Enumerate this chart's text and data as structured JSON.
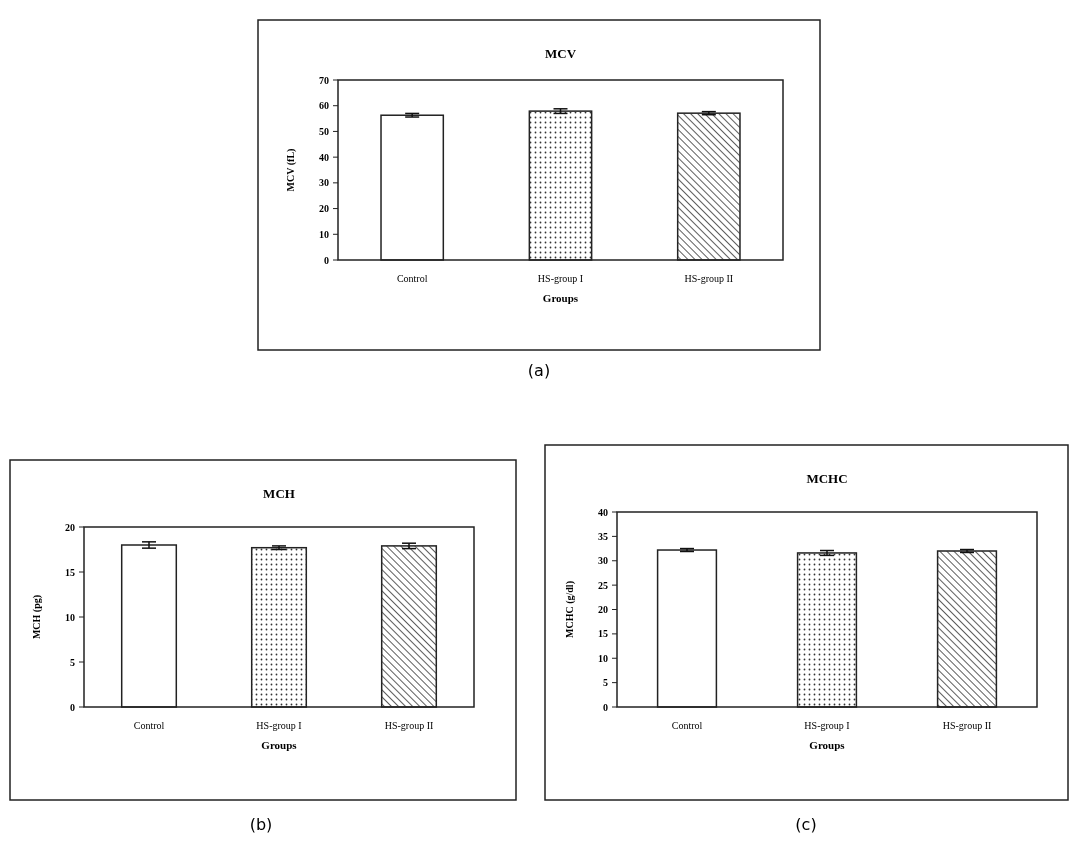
{
  "chart_data": [
    {
      "type": "bar",
      "title": "MCV",
      "xlabel": "Groups",
      "ylabel": "MCV (fL)",
      "categories": [
        "Control",
        "HS-group I",
        "HS-group II"
      ],
      "values": [
        56.3,
        57.9,
        57.1
      ],
      "errors": [
        0.7,
        0.9,
        0.6
      ],
      "colors": [
        "#ffffff",
        "#ffffff",
        "#ffffff"
      ],
      "ylim": [
        0,
        70
      ],
      "yticks": [
        0,
        10,
        20,
        30,
        40,
        50,
        60,
        70
      ],
      "grid": false,
      "annotations": [
        "(a)"
      ]
    },
    {
      "type": "bar",
      "title": "MCH",
      "xlabel": "Groups",
      "ylabel": "MCH (pg)",
      "categories": [
        "Control",
        "HS-group I",
        "HS-group II"
      ],
      "values": [
        18.0,
        17.7,
        17.9
      ],
      "errors": [
        0.35,
        0.2,
        0.3
      ],
      "colors": [
        "#ffffff",
        "#ffffff",
        "#ffffff"
      ],
      "ylim": [
        0,
        20
      ],
      "yticks": [
        0,
        5,
        10,
        15,
        20
      ],
      "grid": false,
      "annotations": [
        "(b)"
      ]
    },
    {
      "type": "bar",
      "title": "MCHC",
      "xlabel": "Groups",
      "ylabel": "MCHC (g/dl)",
      "categories": [
        "Control",
        "HS-group I",
        "HS-group II"
      ],
      "values": [
        32.2,
        31.6,
        32.0
      ],
      "errors": [
        0.3,
        0.5,
        0.3
      ],
      "colors": [
        "#ffffff",
        "#ffffff",
        "#ffffff"
      ],
      "ylim": [
        0,
        40
      ],
      "yticks": [
        0,
        5,
        10,
        15,
        20,
        25,
        30,
        35,
        40
      ],
      "grid": false,
      "annotations": [
        "(c)"
      ]
    }
  ]
}
